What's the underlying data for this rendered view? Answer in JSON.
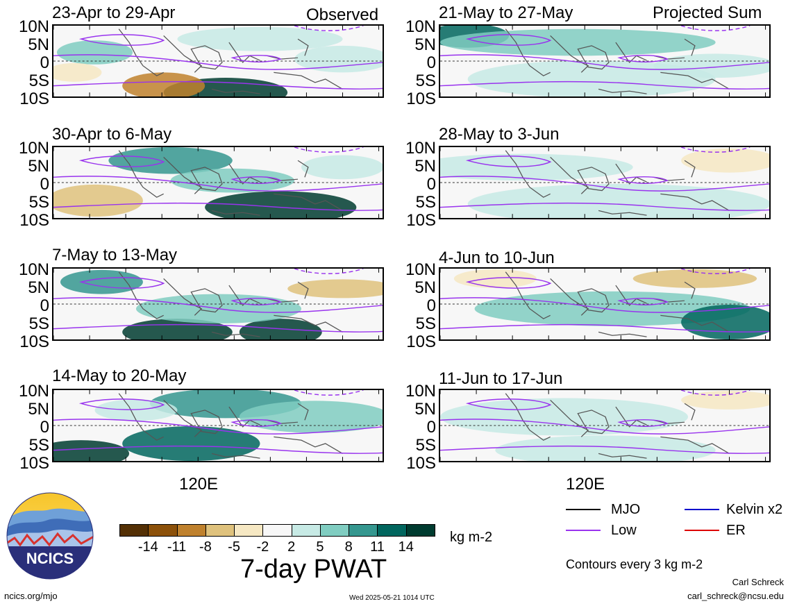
{
  "panels": [
    {
      "title": "23-Apr to 29-Apr",
      "label": "Observed"
    },
    {
      "title": "30-Apr to 6-May",
      "label": ""
    },
    {
      "title": "7-May to 13-May",
      "label": ""
    },
    {
      "title": "14-May to 20-May",
      "label": ""
    },
    {
      "title": "21-May to 27-May",
      "label": "Projected Sum"
    },
    {
      "title": "28-May to 3-Jun",
      "label": ""
    },
    {
      "title": "4-Jun to 10-Jun",
      "label": ""
    },
    {
      "title": "11-Jun to 17-Jun",
      "label": ""
    }
  ],
  "lat_labels": [
    "10N",
    "5N",
    "0",
    "5S",
    "10S"
  ],
  "lon_label": "120E",
  "colorbar": {
    "ticks": [
      "-14",
      "-11",
      "-8",
      "-5",
      "-2",
      "2",
      "5",
      "8",
      "11",
      "14"
    ],
    "colors": [
      "#543005",
      "#8c510a",
      "#bf812d",
      "#dfc27d",
      "#f6e8c3",
      "#f7f7f7",
      "#c7eae5",
      "#80cdc1",
      "#35978f",
      "#01665e",
      "#003c30"
    ],
    "units": "kg m-2",
    "title": "7-day PWAT"
  },
  "legend": {
    "items": [
      {
        "name": "MJO",
        "color": "#000000"
      },
      {
        "name": "Kelvin x2",
        "color": "#0000cc"
      },
      {
        "name": "Low",
        "color": "#9933ee"
      },
      {
        "name": "ER",
        "color": "#dd0000"
      }
    ],
    "note": "Contours every 3 kg m-2"
  },
  "logo_text": "NCICS",
  "footer": {
    "url": "ncics.org/mjo",
    "timestamp": "Wed 2025-05-21 1014 UTC",
    "author": "Carl Schreck",
    "email": "carl_schreck@ncsu.edu"
  }
}
